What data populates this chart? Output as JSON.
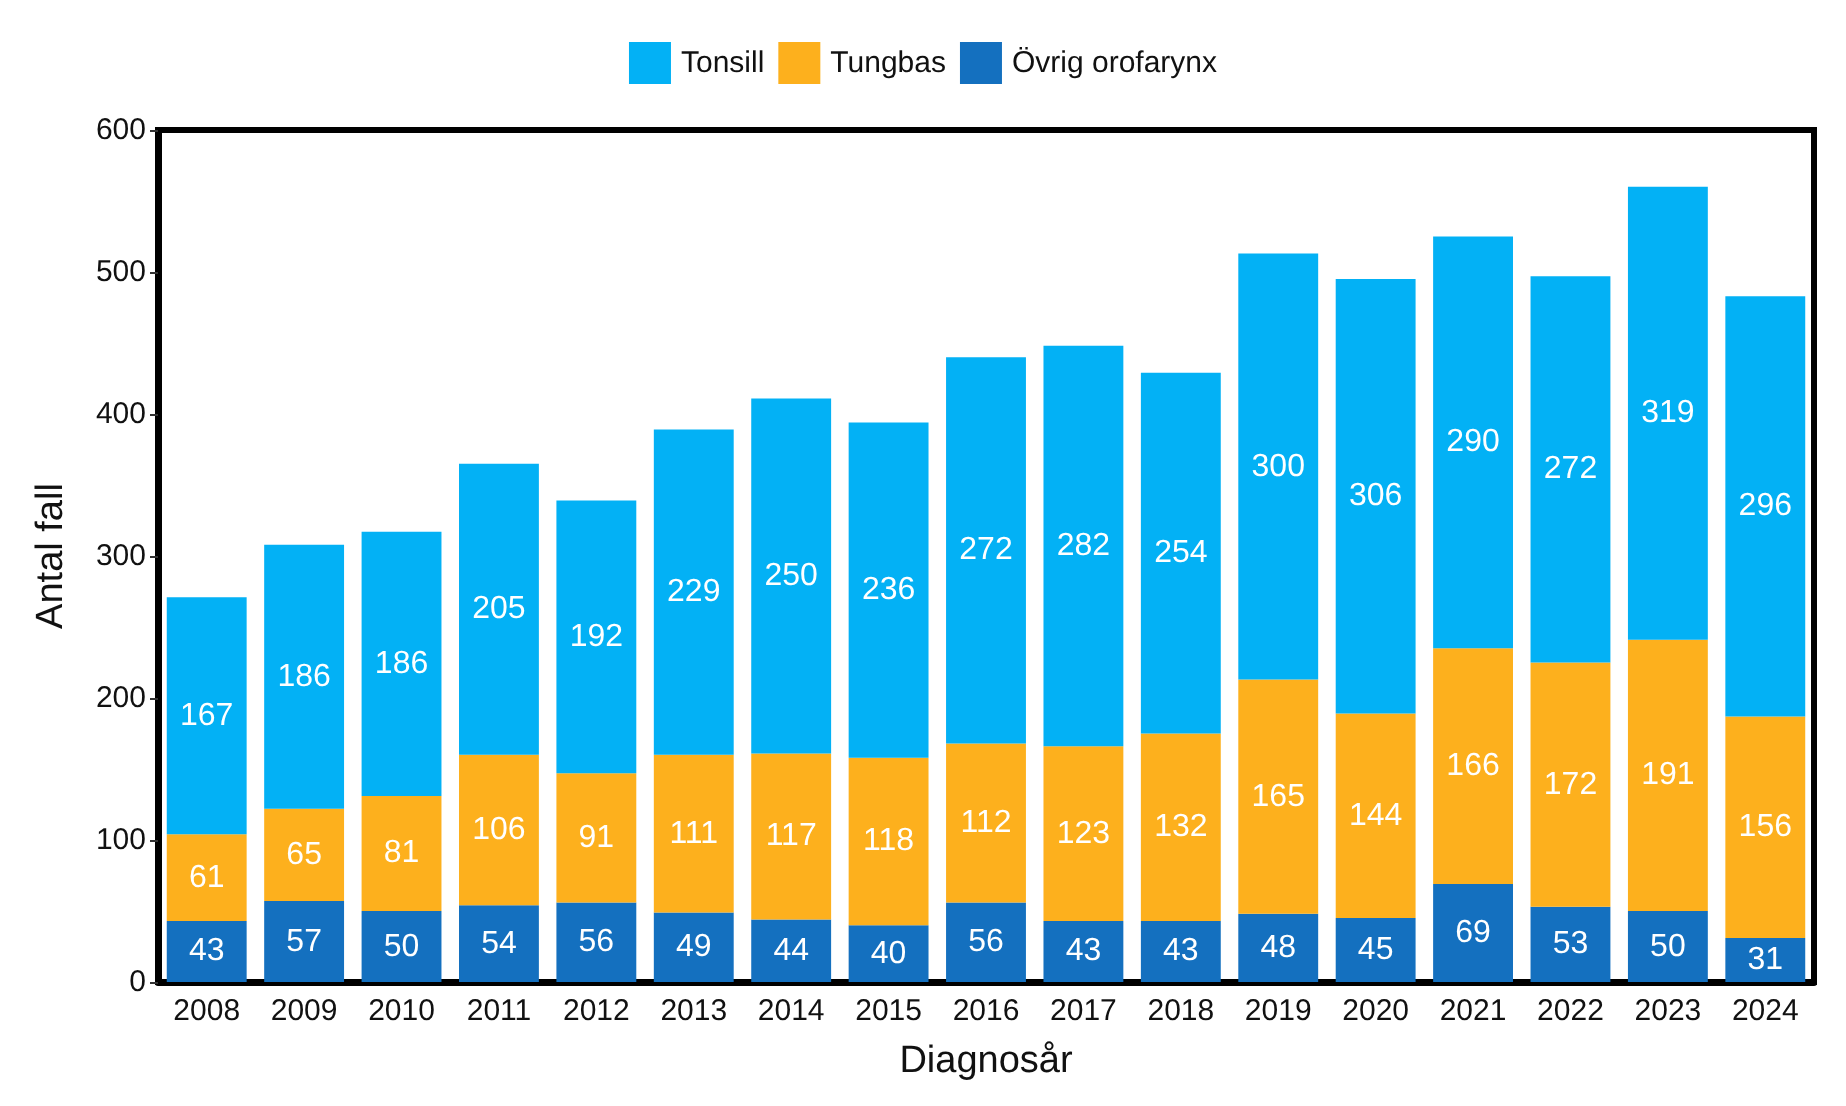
{
  "chart_data": {
    "type": "bar",
    "stacked": true,
    "xlabel": "Diagnosår",
    "ylabel": "Antal fall",
    "categories": [
      "2008",
      "2009",
      "2010",
      "2011",
      "2012",
      "2013",
      "2014",
      "2015",
      "2016",
      "2017",
      "2018",
      "2019",
      "2020",
      "2021",
      "2022",
      "2023",
      "2024"
    ],
    "series": [
      {
        "name": "Övrig orofarynx",
        "color": "#1470bf",
        "values": [
          43,
          57,
          50,
          54,
          56,
          49,
          44,
          40,
          56,
          43,
          43,
          48,
          45,
          69,
          53,
          50,
          31
        ]
      },
      {
        "name": "Tungbas",
        "color": "#fdb01d",
        "values": [
          61,
          65,
          81,
          106,
          91,
          111,
          117,
          118,
          112,
          123,
          132,
          165,
          144,
          166,
          172,
          191,
          156
        ]
      },
      {
        "name": "Tonsill",
        "color": "#03b1f5",
        "values": [
          167,
          186,
          186,
          205,
          192,
          229,
          250,
          236,
          272,
          282,
          254,
          300,
          306,
          290,
          272,
          319,
          296
        ]
      }
    ],
    "ylim": [
      0,
      600
    ],
    "yticks": [
      0,
      100,
      200,
      300,
      400,
      500,
      600
    ],
    "data_labels": true,
    "legend": "top",
    "grid": false
  }
}
